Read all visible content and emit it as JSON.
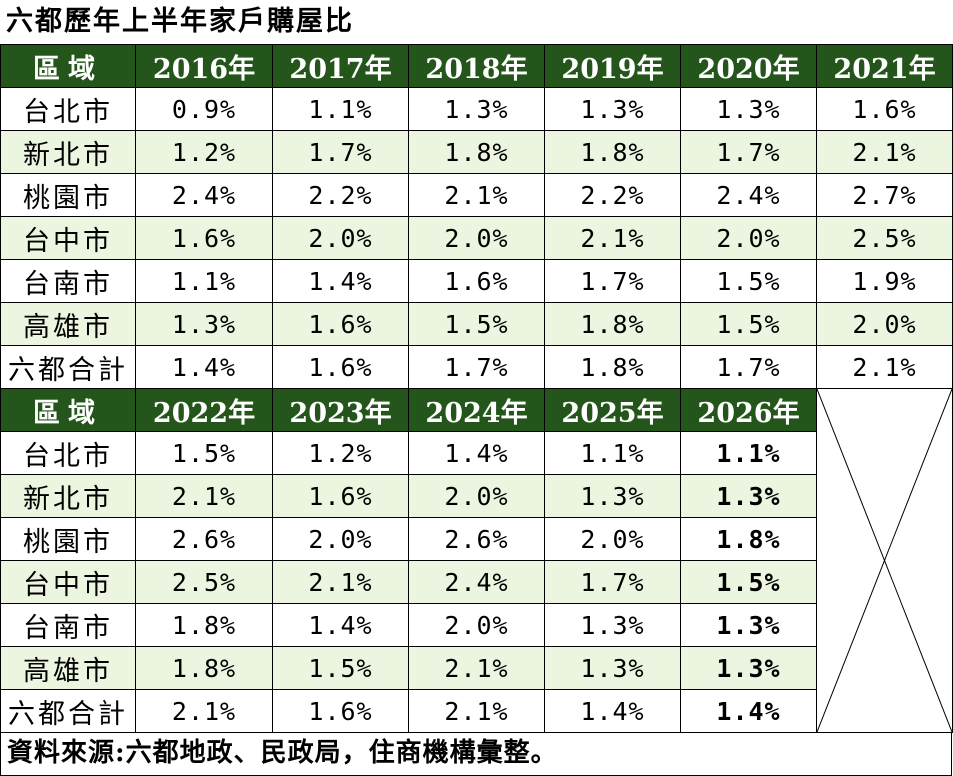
{
  "title": "六都歷年上半年家戶購屋比",
  "source": "資料來源:六都地政、民政局，住商機構彙整。",
  "colors": {
    "header_bg": "#24561b",
    "header_text": "#ffffff",
    "alt_row_bg": "#ebf5df",
    "border": "#000000"
  },
  "table1": {
    "headers": [
      "區域",
      "2016年",
      "2017年",
      "2018年",
      "2019年",
      "2020年",
      "2021年"
    ],
    "rows": [
      {
        "region": "台北市",
        "values": [
          "0.9%",
          "1.1%",
          "1.3%",
          "1.3%",
          "1.3%",
          "1.6%"
        ]
      },
      {
        "region": "新北市",
        "values": [
          "1.2%",
          "1.7%",
          "1.8%",
          "1.8%",
          "1.7%",
          "2.1%"
        ]
      },
      {
        "region": "桃園市",
        "values": [
          "2.4%",
          "2.2%",
          "2.1%",
          "2.2%",
          "2.4%",
          "2.7%"
        ]
      },
      {
        "region": "台中市",
        "values": [
          "1.6%",
          "2.0%",
          "2.0%",
          "2.1%",
          "2.0%",
          "2.5%"
        ]
      },
      {
        "region": "台南市",
        "values": [
          "1.1%",
          "1.4%",
          "1.6%",
          "1.7%",
          "1.5%",
          "1.9%"
        ]
      },
      {
        "region": "高雄市",
        "values": [
          "1.3%",
          "1.6%",
          "1.5%",
          "1.8%",
          "1.5%",
          "2.0%"
        ]
      },
      {
        "region": "六都合計",
        "values": [
          "1.4%",
          "1.6%",
          "1.7%",
          "1.8%",
          "1.7%",
          "2.1%"
        ]
      }
    ]
  },
  "table2": {
    "headers": [
      "區域",
      "2022年",
      "2023年",
      "2024年",
      "2025年",
      "2026年"
    ],
    "rows": [
      {
        "region": "台北市",
        "values": [
          "1.5%",
          "1.2%",
          "1.4%",
          "1.1%",
          "1.1%"
        ]
      },
      {
        "region": "新北市",
        "values": [
          "2.1%",
          "1.6%",
          "2.0%",
          "1.3%",
          "1.3%"
        ]
      },
      {
        "region": "桃園市",
        "values": [
          "2.6%",
          "2.0%",
          "2.6%",
          "2.0%",
          "1.8%"
        ]
      },
      {
        "region": "台中市",
        "values": [
          "2.5%",
          "2.1%",
          "2.4%",
          "1.7%",
          "1.5%"
        ]
      },
      {
        "region": "台南市",
        "values": [
          "1.8%",
          "1.4%",
          "2.0%",
          "1.3%",
          "1.3%"
        ]
      },
      {
        "region": "高雄市",
        "values": [
          "1.8%",
          "1.5%",
          "2.1%",
          "1.3%",
          "1.3%"
        ]
      },
      {
        "region": "六都合計",
        "values": [
          "2.1%",
          "1.6%",
          "2.1%",
          "1.4%",
          "1.4%"
        ]
      }
    ],
    "bold_column_index": 4
  }
}
